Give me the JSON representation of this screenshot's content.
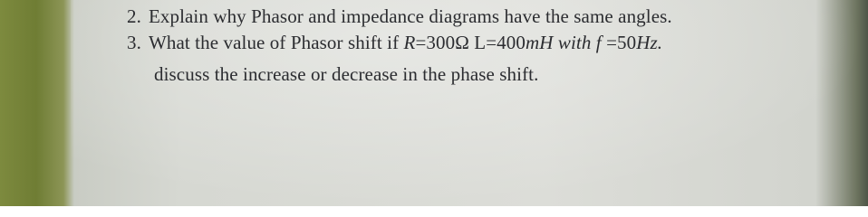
{
  "questions": [
    {
      "number": "2.",
      "text": "Explain why Phasor and impedance diagrams have the same angles."
    },
    {
      "number": "3.",
      "segments": [
        {
          "text": "What the value of Phasor shift if ",
          "style": "normal"
        },
        {
          "text": "R",
          "style": "italic"
        },
        {
          "text": "=300Ω ",
          "style": "normal"
        },
        {
          "text": "L",
          "style": "normal"
        },
        {
          "text": "=400",
          "style": "normal"
        },
        {
          "text": "mH with f",
          "style": "italic"
        },
        {
          "text": " =50",
          "style": "normal"
        },
        {
          "text": "Hz.",
          "style": "italic"
        }
      ],
      "continuation": "discuss the increase or decrease in the phase shift."
    }
  ]
}
